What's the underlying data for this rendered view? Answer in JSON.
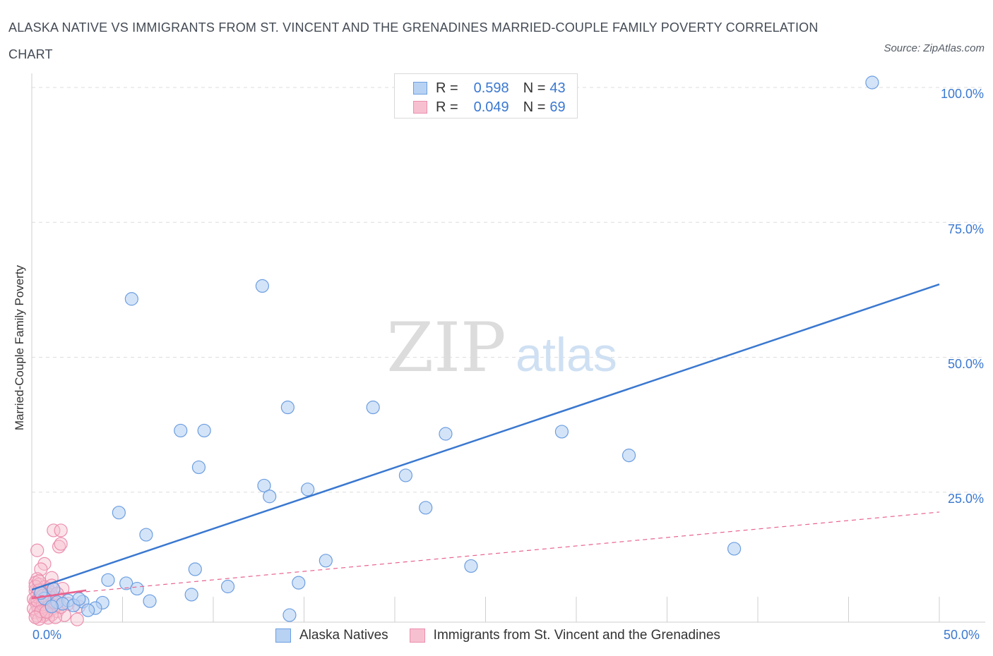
{
  "title": "ALASKA NATIVE VS IMMIGRANTS FROM ST. VINCENT AND THE GRENADINES MARRIED-COUPLE FAMILY POVERTY CORRELATION CHART",
  "source": "Source: ZipAtlas.com",
  "watermark": {
    "zip": "ZIP",
    "atlas": "atlas"
  },
  "colors": {
    "blue": "#3a78d0",
    "blue_fill": "#b8d2f3",
    "pink": "#e8628f",
    "pink_fill": "#f7c0d0",
    "grid": "#dddddd"
  },
  "legend_top": {
    "rows": [
      {
        "r_label": "R =",
        "r_value": "0.598",
        "n_label": "N =",
        "n_value": "43"
      },
      {
        "r_label": "R =",
        "r_value": "0.049",
        "n_label": "N =",
        "n_value": "69"
      }
    ]
  },
  "legend_bottom": [
    "Alaska Natives",
    "Immigrants from St. Vincent and the Grenadines"
  ],
  "chart_data": {
    "type": "scatter",
    "xlabel": "",
    "ylabel": "Married-Couple Family Poverty",
    "xlim": [
      0,
      50
    ],
    "ylim": [
      0,
      100
    ],
    "x_tick_labels": [
      "0.0%",
      "50.0%"
    ],
    "y_tick_labels": [
      "25.0%",
      "50.0%",
      "75.0%",
      "100.0%"
    ],
    "series": [
      {
        "name": "Alaska Natives",
        "color": "#3a78d0",
        "trend": {
          "x": [
            0,
            50
          ],
          "y": [
            6,
            62.6
          ],
          "style": "solid"
        },
        "points": [
          [
            46.3,
            100
          ],
          [
            12.7,
            62.3
          ],
          [
            5.5,
            59.9
          ],
          [
            14.1,
            39.8
          ],
          [
            18.8,
            39.8
          ],
          [
            8.2,
            35.5
          ],
          [
            9.5,
            35.5
          ],
          [
            22.8,
            34.9
          ],
          [
            29.2,
            35.3
          ],
          [
            9.2,
            28.7
          ],
          [
            32.9,
            30.9
          ],
          [
            20.6,
            27.2
          ],
          [
            12.8,
            25.3
          ],
          [
            15.2,
            24.6
          ],
          [
            13.1,
            23.3
          ],
          [
            21.7,
            21.2
          ],
          [
            4.8,
            20.3
          ],
          [
            6.3,
            16.2
          ],
          [
            38.7,
            13.6
          ],
          [
            16.2,
            11.4
          ],
          [
            24.2,
            10.4
          ],
          [
            9.0,
            9.8
          ],
          [
            4.2,
            7.8
          ],
          [
            5.2,
            7.2
          ],
          [
            5.8,
            6.2
          ],
          [
            10.8,
            6.6
          ],
          [
            14.7,
            7.3
          ],
          [
            8.8,
            5.1
          ],
          [
            3.9,
            3.6
          ],
          [
            6.5,
            3.9
          ],
          [
            1.2,
            6.1
          ],
          [
            0.7,
            4.4
          ],
          [
            1.4,
            3.7
          ],
          [
            2.0,
            4.0
          ],
          [
            2.8,
            3.8
          ],
          [
            3.5,
            2.6
          ],
          [
            3.1,
            2.2
          ],
          [
            14.2,
            1.3
          ],
          [
            1.7,
            3.4
          ],
          [
            2.3,
            3.1
          ],
          [
            0.5,
            5.4
          ],
          [
            2.6,
            4.3
          ],
          [
            1.1,
            2.9
          ]
        ]
      },
      {
        "name": "Immigrants from St. Vincent and the Grenadines",
        "color": "#e8628f",
        "trend": {
          "x": [
            0,
            50
          ],
          "y": [
            4.7,
            20.4
          ],
          "style": "dashed"
        },
        "trend_solid": {
          "x": [
            0,
            3.0
          ],
          "y": [
            4.4,
            5.9
          ]
        },
        "points": [
          [
            1.2,
            17.0
          ],
          [
            1.6,
            17.0
          ],
          [
            1.5,
            14.0
          ],
          [
            1.6,
            14.5
          ],
          [
            0.3,
            13.3
          ],
          [
            0.7,
            10.8
          ],
          [
            0.5,
            9.8
          ],
          [
            1.1,
            8.2
          ],
          [
            0.3,
            8.0
          ],
          [
            0.2,
            7.3
          ],
          [
            0.4,
            7.0
          ],
          [
            1.7,
            6.2
          ],
          [
            0.6,
            6.0
          ],
          [
            0.9,
            6.2
          ],
          [
            0.2,
            5.8
          ],
          [
            0.5,
            5.5
          ],
          [
            0.3,
            5.2
          ],
          [
            0.7,
            5.0
          ],
          [
            1.0,
            4.8
          ],
          [
            0.4,
            4.5
          ],
          [
            0.1,
            4.3
          ],
          [
            0.6,
            4.2
          ],
          [
            0.9,
            4.0
          ],
          [
            1.3,
            3.9
          ],
          [
            0.2,
            3.8
          ],
          [
            0.5,
            3.6
          ],
          [
            0.8,
            3.5
          ],
          [
            1.1,
            3.3
          ],
          [
            1.5,
            3.2
          ],
          [
            0.3,
            3.0
          ],
          [
            0.6,
            2.9
          ],
          [
            0.9,
            2.7
          ],
          [
            1.2,
            2.6
          ],
          [
            0.4,
            2.4
          ],
          [
            0.7,
            2.3
          ],
          [
            1.0,
            2.1
          ],
          [
            1.4,
            2.0
          ],
          [
            0.2,
            1.8
          ],
          [
            0.5,
            1.7
          ],
          [
            0.8,
            1.5
          ],
          [
            1.1,
            1.4
          ],
          [
            0.3,
            1.2
          ],
          [
            0.6,
            1.1
          ],
          [
            1.8,
            1.3
          ],
          [
            2.5,
            0.5
          ],
          [
            0.9,
            0.8
          ],
          [
            0.4,
            0.6
          ],
          [
            1.3,
            0.9
          ],
          [
            0.7,
            6.5
          ],
          [
            0.2,
            6.6
          ],
          [
            1.0,
            5.6
          ],
          [
            0.4,
            5.9
          ],
          [
            0.8,
            4.6
          ],
          [
            1.5,
            4.4
          ],
          [
            0.1,
            2.5
          ],
          [
            0.6,
            3.3
          ],
          [
            1.2,
            3.6
          ],
          [
            0.3,
            4.0
          ],
          [
            0.9,
            5.2
          ],
          [
            0.5,
            2.0
          ],
          [
            1.6,
            2.8
          ],
          [
            2.0,
            3.4
          ],
          [
            0.2,
            0.9
          ],
          [
            0.8,
            1.9
          ],
          [
            1.1,
            6.8
          ],
          [
            0.4,
            7.6
          ],
          [
            0.6,
            4.9
          ],
          [
            1.4,
            5.3
          ],
          [
            2.6,
            2.9
          ]
        ]
      }
    ]
  }
}
